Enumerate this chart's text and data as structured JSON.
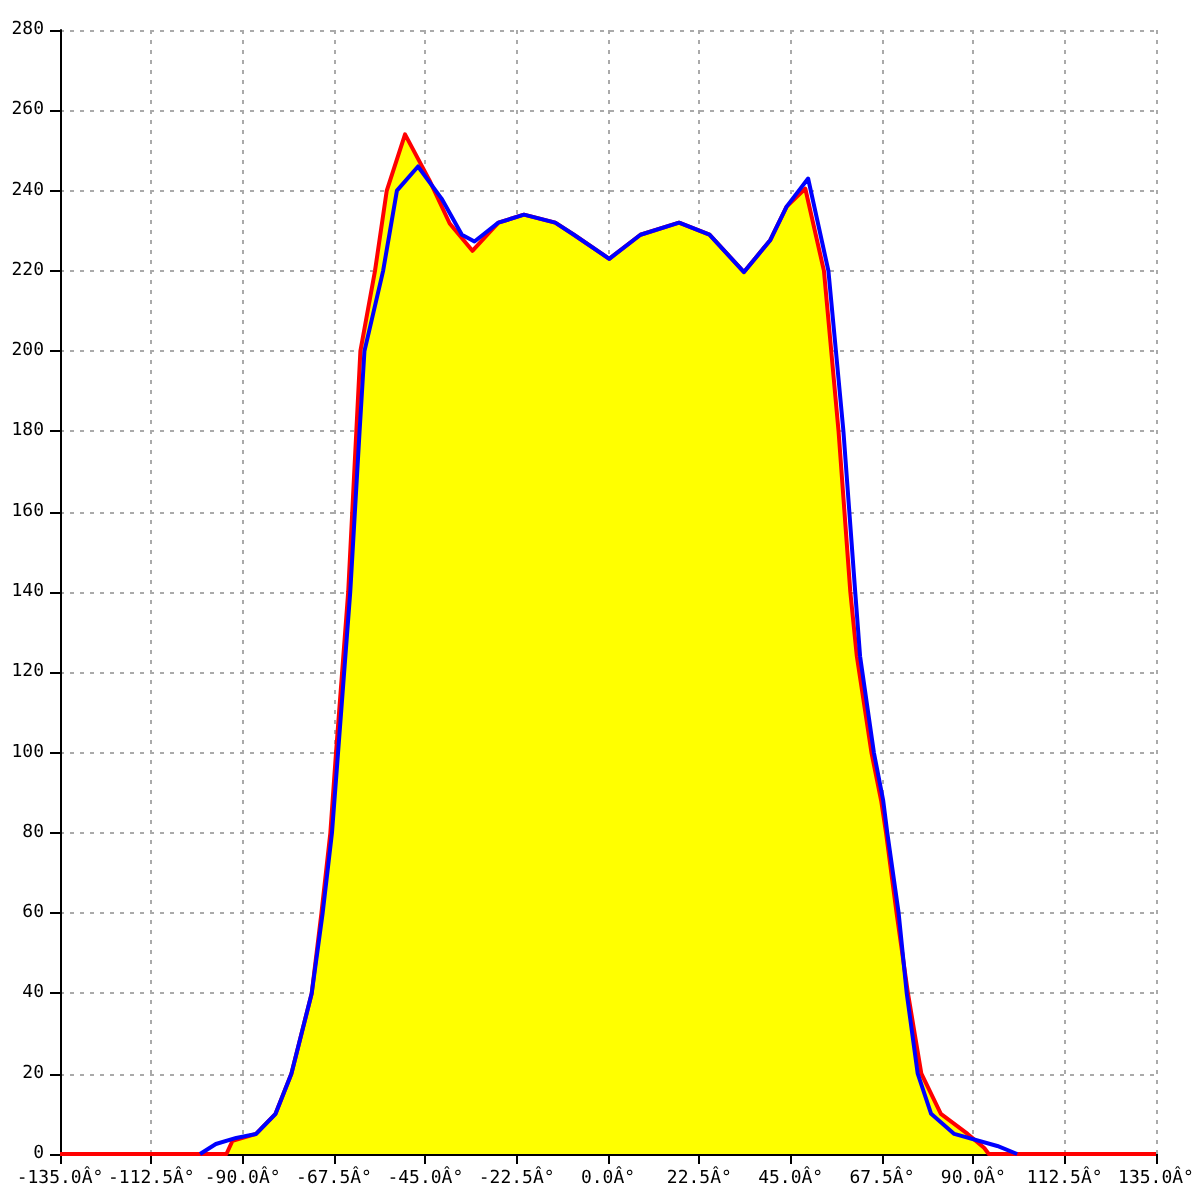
{
  "chart_data": {
    "type": "line",
    "xlim": [
      -135,
      135
    ],
    "ylim": [
      0,
      280
    ],
    "xticks": [
      {
        "value": -135,
        "label": "-135.0Â°"
      },
      {
        "value": -112.5,
        "label": "-112.5Â°"
      },
      {
        "value": -90,
        "label": "-90.0Â°"
      },
      {
        "value": -67.5,
        "label": "-67.5Â°"
      },
      {
        "value": -45,
        "label": "-45.0Â°"
      },
      {
        "value": -22.5,
        "label": "-22.5Â°"
      },
      {
        "value": 0,
        "label": "0.0Â°"
      },
      {
        "value": 22.5,
        "label": "22.5Â°"
      },
      {
        "value": 45,
        "label": "45.0Â°"
      },
      {
        "value": 67.5,
        "label": "67.5Â°"
      },
      {
        "value": 90,
        "label": "90.0Â°"
      },
      {
        "value": 112.5,
        "label": "112.5Â°"
      },
      {
        "value": 135,
        "label": "135.0Â°"
      }
    ],
    "yticks": [
      0,
      20,
      40,
      60,
      80,
      100,
      120,
      140,
      160,
      180,
      200,
      220,
      240,
      260,
      280
    ],
    "grid": true,
    "marker": "none",
    "line_style": "solid",
    "series": [
      {
        "type": "line",
        "color": "#0000ff",
        "x": [
          -100.5,
          -96.6,
          -91.6,
          -86.7,
          -81.9,
          -78,
          -73,
          -70.3,
          -68,
          -66.5,
          -63.5,
          -61.2,
          -60,
          -55.4,
          -52,
          -46.8,
          -41,
          -36,
          -32.9,
          -27,
          -20.7,
          -13,
          -8.4,
          0.3,
          8,
          17.5,
          25,
          33.5,
          40,
          44,
          49.3,
          54.3,
          58,
          60.9,
          62.1,
          65.5,
          67.8,
          68.8,
          71.6,
          73.6,
          76.3,
          79.6,
          85.3,
          95.9,
          100.8
        ],
        "values": [
          0,
          2.5,
          4,
          5,
          10,
          20,
          40,
          60,
          80,
          100,
          140,
          180,
          200,
          220,
          240,
          246,
          238,
          229,
          227.3,
          232,
          234,
          232,
          229,
          223,
          229,
          232,
          229,
          219.7,
          227.7,
          236,
          243,
          220,
          180,
          140,
          124,
          100,
          88,
          80,
          60,
          40,
          20,
          10,
          5,
          2,
          0
        ]
      },
      {
        "type": "area",
        "color": "#ff0000",
        "x": [
          -135,
          -94,
          -92.5,
          -86.7,
          -81.9,
          -78,
          -73,
          -70.6,
          -68.4,
          -67,
          -64,
          -62,
          -61,
          -57.4,
          -54.5,
          -50,
          -44,
          -39,
          -33.4,
          -27,
          -20.7,
          -13,
          -8.4,
          0.3,
          8,
          17.5,
          25,
          33.5,
          40,
          44,
          48.6,
          53.2,
          56.8,
          59.7,
          61.3,
          64.9,
          67.3,
          68.5,
          71.1,
          73.9,
          77.2,
          82,
          88.6,
          92.7,
          93.8,
          135
        ],
        "values": [
          0,
          0,
          3.3,
          5,
          10,
          20,
          40,
          60,
          80,
          100,
          140,
          180,
          200,
          220,
          240,
          254,
          242.6,
          231.8,
          225,
          232,
          234,
          232,
          229,
          223,
          229,
          232,
          229,
          219.7,
          227.7,
          236,
          240.5,
          220,
          180,
          140,
          124,
          100,
          88,
          80,
          60,
          40,
          20,
          10,
          5,
          1.5,
          0,
          0
        ]
      }
    ]
  }
}
